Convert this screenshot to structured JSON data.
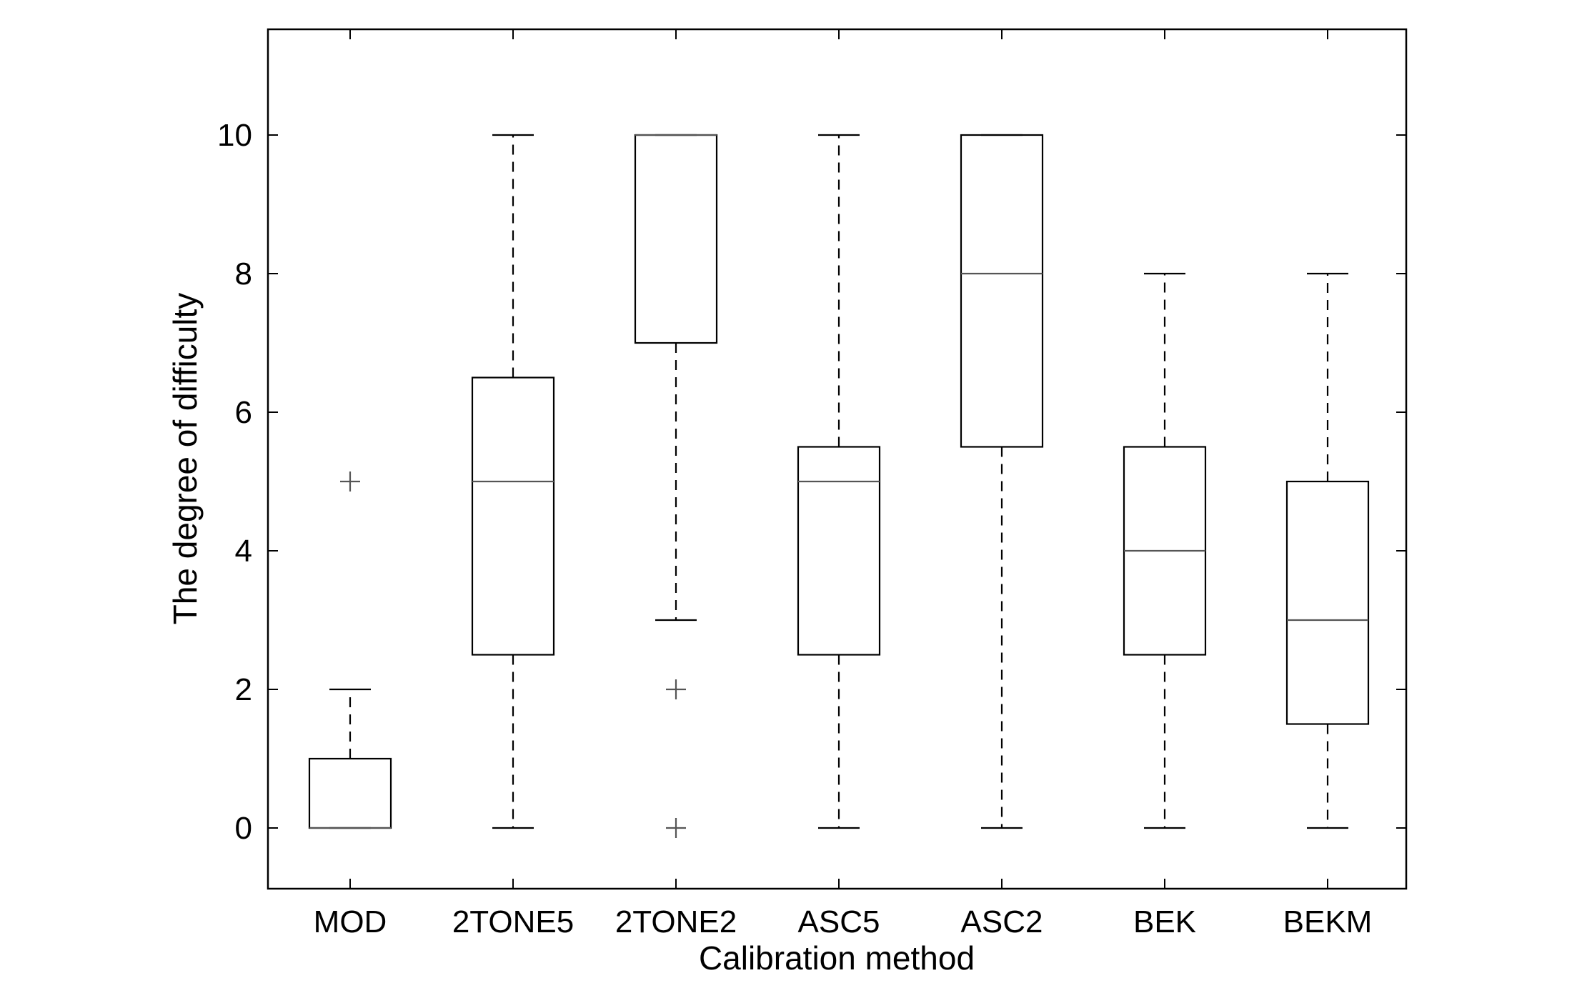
{
  "chart_data": {
    "type": "boxplot",
    "title": "",
    "xlabel": "Calibration method",
    "ylabel": "The degree of difficulty",
    "ylim": [
      -0.9,
      11.5
    ],
    "yticks": [
      0,
      2,
      4,
      6,
      8,
      10
    ],
    "ytick_labels": [
      "0",
      "2",
      "4",
      "6",
      "8",
      "10"
    ],
    "grid": false,
    "legend": "none",
    "colors": {
      "box": "#000000",
      "median": "#555555",
      "outlier": "#555555"
    },
    "categories": [
      "MOD",
      "2TONE5",
      "2TONE2",
      "ASC5",
      "ASC2",
      "BEK",
      "BEKM"
    ],
    "boxes": [
      {
        "label": "MOD",
        "whisker_low": 0,
        "q1": 0,
        "median": 0,
        "q3": 1,
        "whisker_high": 2,
        "outliers": [
          5
        ]
      },
      {
        "label": "2TONE5",
        "whisker_low": 0,
        "q1": 2.5,
        "median": 5,
        "q3": 6.5,
        "whisker_high": 10,
        "outliers": []
      },
      {
        "label": "2TONE2",
        "whisker_low": 3,
        "q1": 7,
        "median": 10,
        "q3": 10,
        "whisker_high": 10,
        "outliers": [
          2,
          0
        ]
      },
      {
        "label": "ASC5",
        "whisker_low": 0,
        "q1": 2.5,
        "median": 5,
        "q3": 5.5,
        "whisker_high": 10,
        "outliers": []
      },
      {
        "label": "ASC2",
        "whisker_low": 0,
        "q1": 5.5,
        "median": 8,
        "q3": 10,
        "whisker_high": 10,
        "outliers": []
      },
      {
        "label": "BEK",
        "whisker_low": 0,
        "q1": 2.5,
        "median": 4,
        "q3": 5.5,
        "whisker_high": 8,
        "outliers": []
      },
      {
        "label": "BEKM",
        "whisker_low": 0,
        "q1": 1.5,
        "median": 3,
        "q3": 5,
        "whisker_high": 8,
        "outliers": []
      }
    ]
  }
}
